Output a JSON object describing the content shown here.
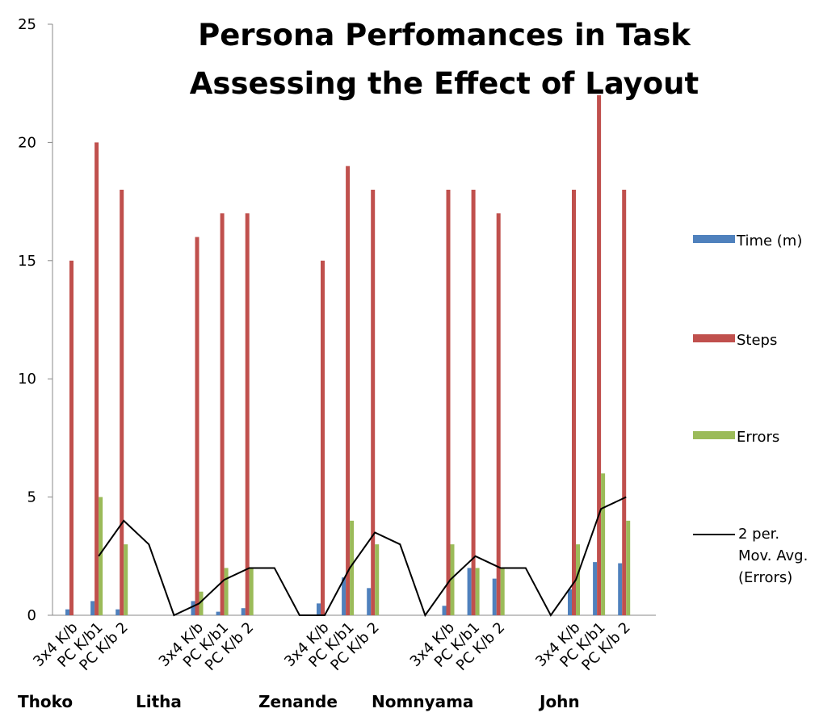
{
  "chart_data": {
    "type": "bar",
    "title": "Persona Perfomances in Task Assessing the Effect of Layout",
    "categories": [
      "3x4 K/b",
      "PC K/b1",
      "PC K/b 2",
      null,
      null,
      "3x4 K/b",
      "PC K/b1",
      "PC K/b 2",
      null,
      null,
      "3x4 K/b",
      "PC K/b1",
      "PC K/b 2",
      null,
      null,
      "3x4 K/b",
      "PC K/b1",
      "PC K/b 2",
      null,
      null,
      "3x4 K/b",
      "PC K/b1",
      "PC K/b 2"
    ],
    "groups": [
      "Thoko",
      "Litha",
      "Zenande",
      "Nomnyama",
      "John"
    ],
    "series": [
      {
        "name": "Time (m)",
        "color": "#4f81bd",
        "values": [
          0.25,
          0.6,
          0.25,
          null,
          null,
          0.6,
          0.15,
          0.3,
          null,
          null,
          0.5,
          1.6,
          1.15,
          null,
          null,
          0.4,
          2,
          1.55,
          null,
          null,
          1.1,
          2.25,
          2.2
        ]
      },
      {
        "name": "Steps",
        "color": "#c0504d",
        "values": [
          15,
          20,
          18,
          null,
          null,
          16,
          17,
          17,
          null,
          null,
          15,
          19,
          18,
          null,
          null,
          18,
          18,
          17,
          null,
          null,
          18,
          22,
          18
        ]
      },
      {
        "name": "Errors",
        "color": "#9bbb59",
        "values": [
          0,
          5,
          3,
          null,
          null,
          1,
          2,
          2,
          null,
          null,
          0,
          4,
          3,
          null,
          null,
          3,
          2,
          2,
          null,
          null,
          3,
          6,
          4
        ]
      }
    ],
    "trendline": {
      "name": "2 per. Mov. Avg. (Errors)",
      "color": "#000000",
      "values": [
        null,
        2.5,
        4,
        3,
        0,
        0.5,
        1.5,
        2,
        2,
        0,
        0,
        2,
        3.5,
        3,
        0,
        1.5,
        2.5,
        2,
        2,
        0,
        1.5,
        4.5,
        5
      ]
    },
    "ylim": [
      0,
      25
    ],
    "yticks": [
      0,
      5,
      10,
      15,
      20,
      25
    ],
    "legend": "right"
  }
}
